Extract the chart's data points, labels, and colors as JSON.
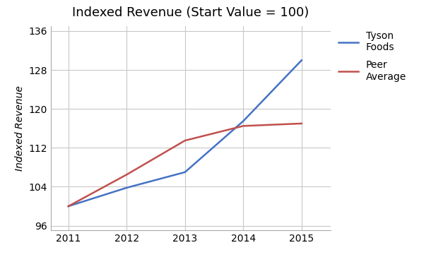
{
  "title": "Indexed Revenue (Start Value = 100)",
  "ylabel": "Indexed Revenue",
  "x": [
    2011,
    2012,
    2013,
    2014,
    2015
  ],
  "tyson_y": [
    100.0,
    103.8,
    107.0,
    117.5,
    130.0
  ],
  "peer_y": [
    100.0,
    106.5,
    113.5,
    116.5,
    117.0
  ],
  "tyson_color": "#4472C4",
  "peer_color": "#C0504D",
  "tyson_label": "Tyson\nFoods",
  "peer_label": "Peer\nAverage",
  "ylim": [
    95,
    137
  ],
  "yticks": [
    96,
    104,
    112,
    120,
    128,
    136
  ],
  "xlim": [
    2010.7,
    2015.5
  ],
  "xticks": [
    2011,
    2012,
    2013,
    2014,
    2015
  ],
  "grid_color": "#C8C8C8",
  "line_width": 1.8,
  "bg_color": "#FFFFFF",
  "title_fontsize": 13,
  "axis_fontsize": 10,
  "tick_fontsize": 10,
  "legend_fontsize": 10
}
